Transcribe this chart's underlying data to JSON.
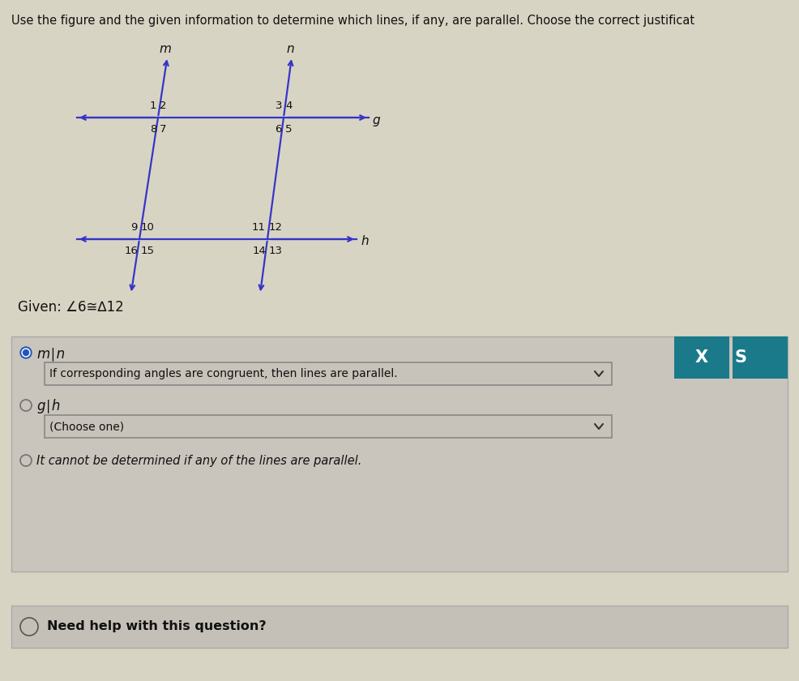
{
  "bg_color": "#d8d4c4",
  "title_text": "Use the figure and the given information to determine which lines, if any, are parallel. Choose the correct justificat",
  "title_fontsize": 10.5,
  "given_text": "Given: ∠6≅∆12",
  "line_color": "#3535c8",
  "option1_label": "m∣n",
  "option1_justification": "If corresponding angles are congruent, then lines are parallel.",
  "option2_label": "g∣h",
  "option2_justification": "(Choose one)",
  "option3_label": "It cannot be determined if any of the lines are parallel.",
  "need_help_text": "Need help with this question?",
  "teal_color": "#1a7a8a",
  "x_button_text": "X",
  "box_color": "#cac5bc",
  "dropdown_color": "#c8c3ba",
  "help_box_color": "#c5c0b7"
}
